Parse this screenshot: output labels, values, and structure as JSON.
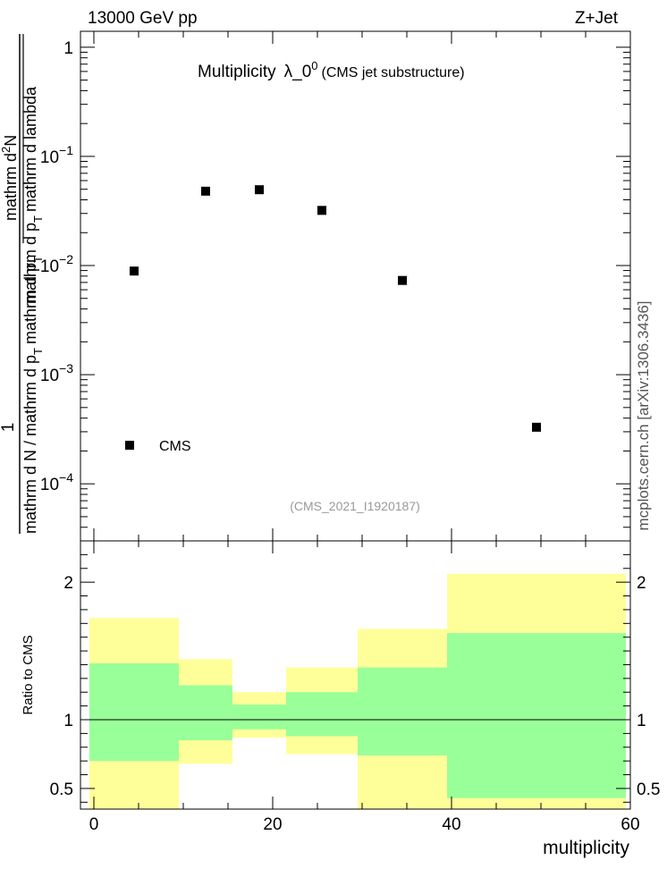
{
  "header": {
    "energy_label": "13000 GeV pp",
    "process_label": "Z+Jet"
  },
  "side_label": "mcplots.cern.ch [arXiv:1306.3436]",
  "chart_data": [
    {
      "type": "scatter",
      "title_main": "Multiplicity",
      "title_lambda": "λ_0",
      "title_sup": "0",
      "title_suffix": "(CMS jet substructure)",
      "analysis_id": "(CMS_2021_I1920187)",
      "ylabel_parts": {
        "numerator": "1",
        "denominator": "mathrm d N / mathrm d p",
        "sub": "T",
        "denominator_tail": "mathrm d p",
        "sub2": "T",
        "frac_top": "mathrm d",
        "frac_top_sup": "2",
        "frac_top_tail": "N",
        "frac_bottom": "mathrm d p",
        "frac_bottom_sub": "T",
        "frac_bottom_tail": "mathrm d lambda"
      },
      "yscale": "log",
      "ylim": [
        3e-05,
        1.4
      ],
      "xlim": [
        -1.5,
        60
      ],
      "y_ticks": [
        {
          "value": 1,
          "label": "1"
        },
        {
          "value": 0.1,
          "label": "10",
          "exp": "−1"
        },
        {
          "value": 0.01,
          "label": "10",
          "exp": "−2"
        },
        {
          "value": 0.001,
          "label": "10",
          "exp": "−3"
        },
        {
          "value": 0.0001,
          "label": "10",
          "exp": "−4"
        }
      ],
      "legend": [
        {
          "name": "CMS",
          "marker": "square"
        }
      ],
      "series": [
        {
          "name": "CMS",
          "x": [
            4.5,
            12.5,
            18.5,
            25.5,
            34.5,
            49.5
          ],
          "y": [
            0.0089,
            0.048,
            0.0495,
            0.032,
            0.0073,
            0.00033
          ]
        }
      ]
    },
    {
      "type": "area",
      "ylabel": "Ratio to CMS",
      "xlabel": "multiplicity",
      "xlim": [
        -1.5,
        60
      ],
      "ylim": [
        0.35,
        2.3
      ],
      "x_ticks": [
        {
          "value": 0,
          "label": "0"
        },
        {
          "value": 20,
          "label": "20"
        },
        {
          "value": 40,
          "label": "40"
        },
        {
          "value": 60,
          "label": "60"
        }
      ],
      "y_ticks": [
        {
          "value": 0.5,
          "label": "0.5"
        },
        {
          "value": 1,
          "label": "1"
        },
        {
          "value": 2,
          "label": "2"
        }
      ],
      "reference_line": 1,
      "bins": [
        {
          "x0": -0.5,
          "x1": 9.5,
          "outer": [
            0.35,
            1.74
          ],
          "inner": [
            0.7,
            1.41
          ]
        },
        {
          "x0": 9.5,
          "x1": 15.5,
          "outer": [
            0.68,
            1.44
          ],
          "inner": [
            0.85,
            1.25
          ]
        },
        {
          "x0": 15.5,
          "x1": 21.5,
          "outer": [
            0.87,
            1.2
          ],
          "inner": [
            0.93,
            1.11
          ]
        },
        {
          "x0": 21.5,
          "x1": 29.5,
          "outer": [
            0.75,
            1.38
          ],
          "inner": [
            0.88,
            1.2
          ]
        },
        {
          "x0": 29.5,
          "x1": 39.5,
          "outer": [
            0.35,
            1.66
          ],
          "inner": [
            0.74,
            1.38
          ]
        },
        {
          "x0": 39.5,
          "x1": 59.5,
          "outer": [
            0.35,
            2.06
          ],
          "inner": [
            0.43,
            1.63
          ]
        }
      ],
      "colors": {
        "outer_band": "#ffff99",
        "inner_band": "#99ff99",
        "frame": "#000000"
      }
    }
  ]
}
